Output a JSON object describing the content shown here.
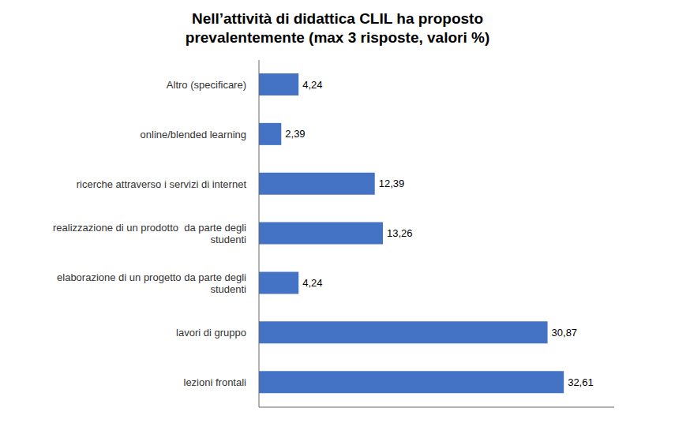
{
  "chart_data": {
    "type": "bar",
    "orientation": "horizontal",
    "title": "Nell’attività di didattica CLIL ha proposto\nprevalentemente (max 3 risposte, valori %)",
    "categories": [
      "lezioni frontali",
      "lavori di gruppo",
      "elaborazione di un progetto da parte degli\nstudenti",
      "realizzazione di un prodotto  da parte degli\nstudenti",
      "ricerche attraverso i servizi di internet",
      "online/blended learning",
      "Altro (specificare)"
    ],
    "values": [
      32.61,
      30.87,
      4.24,
      13.26,
      12.39,
      2.39,
      4.24
    ],
    "value_labels": [
      "32,61",
      "30,87",
      "4,24",
      "13,26",
      "12,39",
      "2,39",
      "4,24"
    ],
    "color": "#4472C4",
    "xlim": [
      0,
      38
    ],
    "tick_labels": "y",
    "data_labels": true,
    "grid": false
  }
}
